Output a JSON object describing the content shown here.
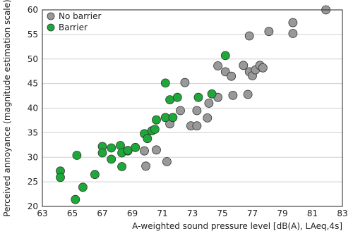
{
  "chart_data": {
    "type": "scatter",
    "title": "",
    "xlabel": "A-weighted sound pressure level [dB(A), LAeq,4s]",
    "ylabel": "Perceived annoyance (magnitude estimation scale)",
    "xlim": [
      63,
      83
    ],
    "ylim": [
      20,
      60
    ],
    "xticks": [
      63,
      65,
      67,
      69,
      71,
      73,
      75,
      77,
      79,
      81,
      83
    ],
    "yticks": [
      20,
      25,
      30,
      35,
      40,
      45,
      50,
      55,
      60
    ],
    "grid": "horizontal",
    "legend_position": "top-left",
    "series": [
      {
        "name": "No barrier",
        "color": "#999999",
        "points": [
          [
            69.8,
            31.3
          ],
          [
            69.9,
            28.2
          ],
          [
            70.6,
            31.5
          ],
          [
            71.3,
            29.1
          ],
          [
            71.5,
            36.8
          ],
          [
            72.2,
            39.5
          ],
          [
            72.5,
            45.2
          ],
          [
            72.9,
            36.4
          ],
          [
            73.3,
            36.4
          ],
          [
            73.3,
            39.5
          ],
          [
            74.0,
            38.0
          ],
          [
            74.1,
            41.0
          ],
          [
            74.7,
            42.2
          ],
          [
            74.7,
            48.6
          ],
          [
            75.2,
            47.4
          ],
          [
            75.6,
            46.5
          ],
          [
            75.7,
            42.6
          ],
          [
            76.4,
            48.7
          ],
          [
            76.7,
            42.8
          ],
          [
            76.8,
            47.4
          ],
          [
            76.8,
            54.7
          ],
          [
            77.0,
            46.6
          ],
          [
            77.2,
            47.8
          ],
          [
            77.5,
            48.7
          ],
          [
            77.7,
            48.2
          ],
          [
            78.1,
            55.6
          ],
          [
            79.7,
            57.4
          ],
          [
            79.7,
            55.2
          ],
          [
            81.9,
            60.0
          ]
        ]
      },
      {
        "name": "Barrier",
        "color": "#1fa83a",
        "points": [
          [
            64.2,
            27.2
          ],
          [
            64.2,
            25.9
          ],
          [
            65.2,
            21.4
          ],
          [
            65.3,
            30.4
          ],
          [
            65.7,
            23.9
          ],
          [
            66.5,
            26.5
          ],
          [
            67.0,
            32.2
          ],
          [
            67.0,
            30.9
          ],
          [
            67.6,
            29.6
          ],
          [
            67.6,
            31.9
          ],
          [
            68.2,
            32.4
          ],
          [
            68.3,
            28.1
          ],
          [
            68.3,
            30.9
          ],
          [
            68.7,
            31.3
          ],
          [
            68.7,
            31.4
          ],
          [
            69.2,
            32.0
          ],
          [
            69.8,
            34.8
          ],
          [
            70.0,
            33.8
          ],
          [
            70.3,
            35.4
          ],
          [
            70.5,
            35.7
          ],
          [
            70.6,
            37.6
          ],
          [
            71.2,
            45.1
          ],
          [
            71.2,
            38.1
          ],
          [
            71.5,
            41.7
          ],
          [
            71.7,
            38.1
          ],
          [
            72.0,
            42.2
          ],
          [
            73.4,
            42.2
          ],
          [
            74.3,
            42.9
          ],
          [
            75.2,
            50.7
          ]
        ]
      }
    ]
  }
}
